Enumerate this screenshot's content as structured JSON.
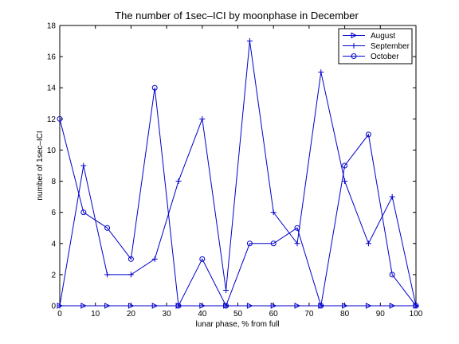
{
  "chart_data": {
    "type": "line",
    "title": "The number of 1sec–ICI by moonphase in December",
    "xlabel": "lunar phase, % from full",
    "ylabel": "number of 1sec–ICI",
    "xlim": [
      0,
      100
    ],
    "ylim": [
      0,
      18
    ],
    "xticks": [
      0,
      10,
      20,
      30,
      40,
      50,
      60,
      70,
      80,
      90,
      100
    ],
    "yticks": [
      0,
      2,
      4,
      6,
      8,
      10,
      12,
      14,
      16,
      18
    ],
    "grid": false,
    "legend_position": "top-right",
    "line_color": "#0000cc",
    "x": [
      0,
      6.67,
      13.33,
      20,
      26.67,
      33.33,
      40,
      46.67,
      53.33,
      60,
      66.67,
      73.33,
      80,
      86.67,
      93.33,
      100
    ],
    "series": [
      {
        "name": "August",
        "marker": "triangle-right",
        "values": [
          0,
          0,
          0,
          0,
          0,
          0,
          0,
          0,
          0,
          0,
          0,
          0,
          0,
          0,
          0,
          0
        ]
      },
      {
        "name": "September",
        "marker": "plus",
        "values": [
          0,
          9,
          2,
          2,
          3,
          8,
          12,
          1,
          17,
          6,
          4,
          15,
          8,
          4,
          7,
          0
        ]
      },
      {
        "name": "October",
        "marker": "circle",
        "values": [
          12,
          6,
          5,
          3,
          14,
          0,
          3,
          0,
          4,
          4,
          5,
          0,
          9,
          11,
          2,
          0
        ]
      }
    ]
  }
}
